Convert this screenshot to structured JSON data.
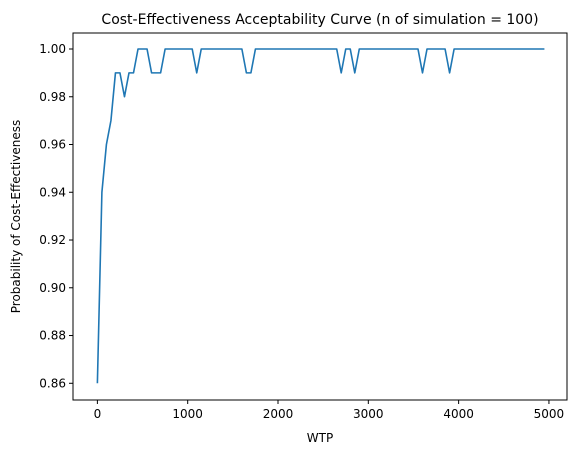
{
  "chart_data": {
    "type": "line",
    "title": "Cost-Effectiveness Acceptability Curve (n of simulation = 100)",
    "xlabel": "WTP",
    "ylabel": "Probability of Cost-Effectiveness",
    "xlim": [
      -270,
      5200
    ],
    "ylim": [
      0.853,
      1.0067
    ],
    "xticks": [
      0,
      1000,
      2000,
      3000,
      4000,
      5000
    ],
    "yticks": [
      0.86,
      0.88,
      0.9,
      0.92,
      0.94,
      0.96,
      0.98,
      1.0
    ],
    "xtick_labels": [
      "0",
      "1000",
      "2000",
      "3000",
      "4000",
      "5000"
    ],
    "ytick_labels": [
      "0.86",
      "0.88",
      "0.90",
      "0.92",
      "0.94",
      "0.96",
      "0.98",
      "1.00"
    ],
    "grid": false,
    "legend": "none",
    "series": [
      {
        "color": "#1f77b4",
        "x": [
          0,
          50,
          100,
          150,
          200,
          250,
          300,
          350,
          400,
          450,
          500,
          550,
          600,
          650,
          700,
          750,
          800,
          850,
          900,
          950,
          1000,
          1050,
          1100,
          1150,
          1200,
          1250,
          1300,
          1350,
          1400,
          1450,
          1500,
          1550,
          1600,
          1650,
          1700,
          1750,
          1800,
          1850,
          1900,
          1950,
          2000,
          2050,
          2100,
          2150,
          2200,
          2250,
          2300,
          2350,
          2400,
          2450,
          2500,
          2550,
          2600,
          2650,
          2700,
          2750,
          2800,
          2850,
          2900,
          2950,
          3000,
          3050,
          3100,
          3150,
          3200,
          3250,
          3300,
          3350,
          3400,
          3450,
          3500,
          3550,
          3600,
          3650,
          3700,
          3750,
          3800,
          3850,
          3900,
          3950,
          4000,
          4050,
          4100,
          4150,
          4200,
          4250,
          4300,
          4350,
          4400,
          4450,
          4500,
          4550,
          4600,
          4650,
          4700,
          4750,
          4800,
          4850,
          4900,
          4950
        ],
        "values": [
          0.86,
          0.94,
          0.96,
          0.97,
          0.99,
          0.99,
          0.98,
          0.99,
          0.99,
          1.0,
          1.0,
          1.0,
          0.99,
          0.99,
          0.99,
          1.0,
          1.0,
          1.0,
          1.0,
          1.0,
          1.0,
          1.0,
          0.99,
          1.0,
          1.0,
          1.0,
          1.0,
          1.0,
          1.0,
          1.0,
          1.0,
          1.0,
          1.0,
          0.99,
          0.99,
          1.0,
          1.0,
          1.0,
          1.0,
          1.0,
          1.0,
          1.0,
          1.0,
          1.0,
          1.0,
          1.0,
          1.0,
          1.0,
          1.0,
          1.0,
          1.0,
          1.0,
          1.0,
          1.0,
          0.99,
          1.0,
          1.0,
          0.99,
          1.0,
          1.0,
          1.0,
          1.0,
          1.0,
          1.0,
          1.0,
          1.0,
          1.0,
          1.0,
          1.0,
          1.0,
          1.0,
          1.0,
          0.99,
          1.0,
          1.0,
          1.0,
          1.0,
          1.0,
          0.99,
          1.0,
          1.0,
          1.0,
          1.0,
          1.0,
          1.0,
          1.0,
          1.0,
          1.0,
          1.0,
          1.0,
          1.0,
          1.0,
          1.0,
          1.0,
          1.0,
          1.0,
          1.0,
          1.0,
          1.0,
          1.0
        ]
      }
    ]
  }
}
